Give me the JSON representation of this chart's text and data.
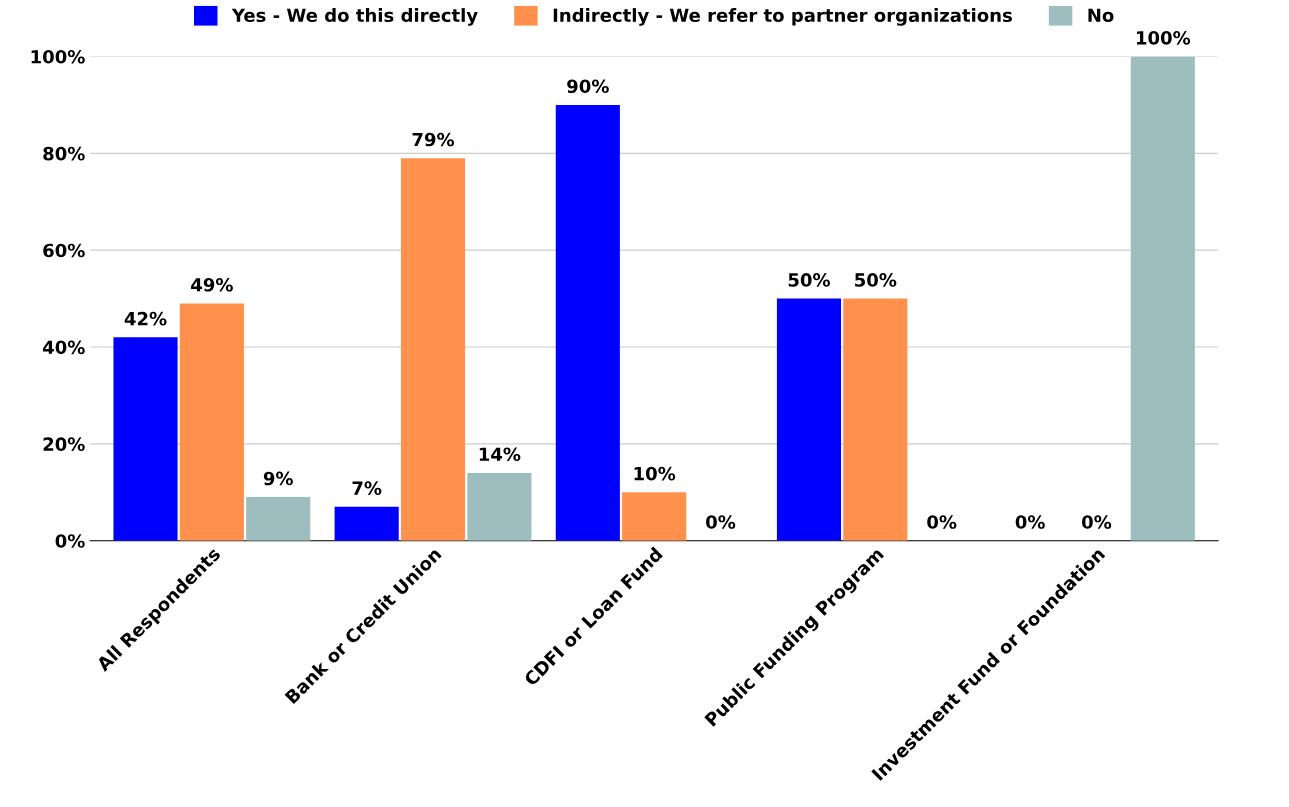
{
  "chart_data": {
    "type": "bar",
    "categories": [
      "All Respondents",
      "Bank or Credit Union",
      "CDFI or Loan Fund",
      "Public Funding Program",
      "Investment Fund or Foundation"
    ],
    "series": [
      {
        "name": "Yes - We do this directly",
        "color": "#0000ff",
        "values": [
          42,
          7,
          90,
          50,
          0
        ]
      },
      {
        "name": "Indirectly - We refer to partner organizations",
        "color": "#ff914d",
        "values": [
          49,
          79,
          10,
          50,
          0
        ]
      },
      {
        "name": "No",
        "color": "#9ebdbf",
        "values": [
          9,
          14,
          0,
          0,
          100
        ]
      }
    ],
    "ylim": [
      0,
      100
    ],
    "yticks": [
      {
        "value": 0,
        "label": "0%"
      },
      {
        "value": 20,
        "label": "20%"
      },
      {
        "value": 40,
        "label": "40%"
      },
      {
        "value": 60,
        "label": "60%"
      },
      {
        "value": 80,
        "label": "80%"
      },
      {
        "value": 100,
        "label": "100%"
      }
    ],
    "value_labels": [
      [
        "42%",
        "7%",
        "90%",
        "50%",
        "0%"
      ],
      [
        "49%",
        "79%",
        "10%",
        "50%",
        "0%"
      ],
      [
        "9%",
        "14%",
        "0%",
        "0%",
        "100%"
      ]
    ],
    "grid": "y",
    "legend": "top"
  }
}
